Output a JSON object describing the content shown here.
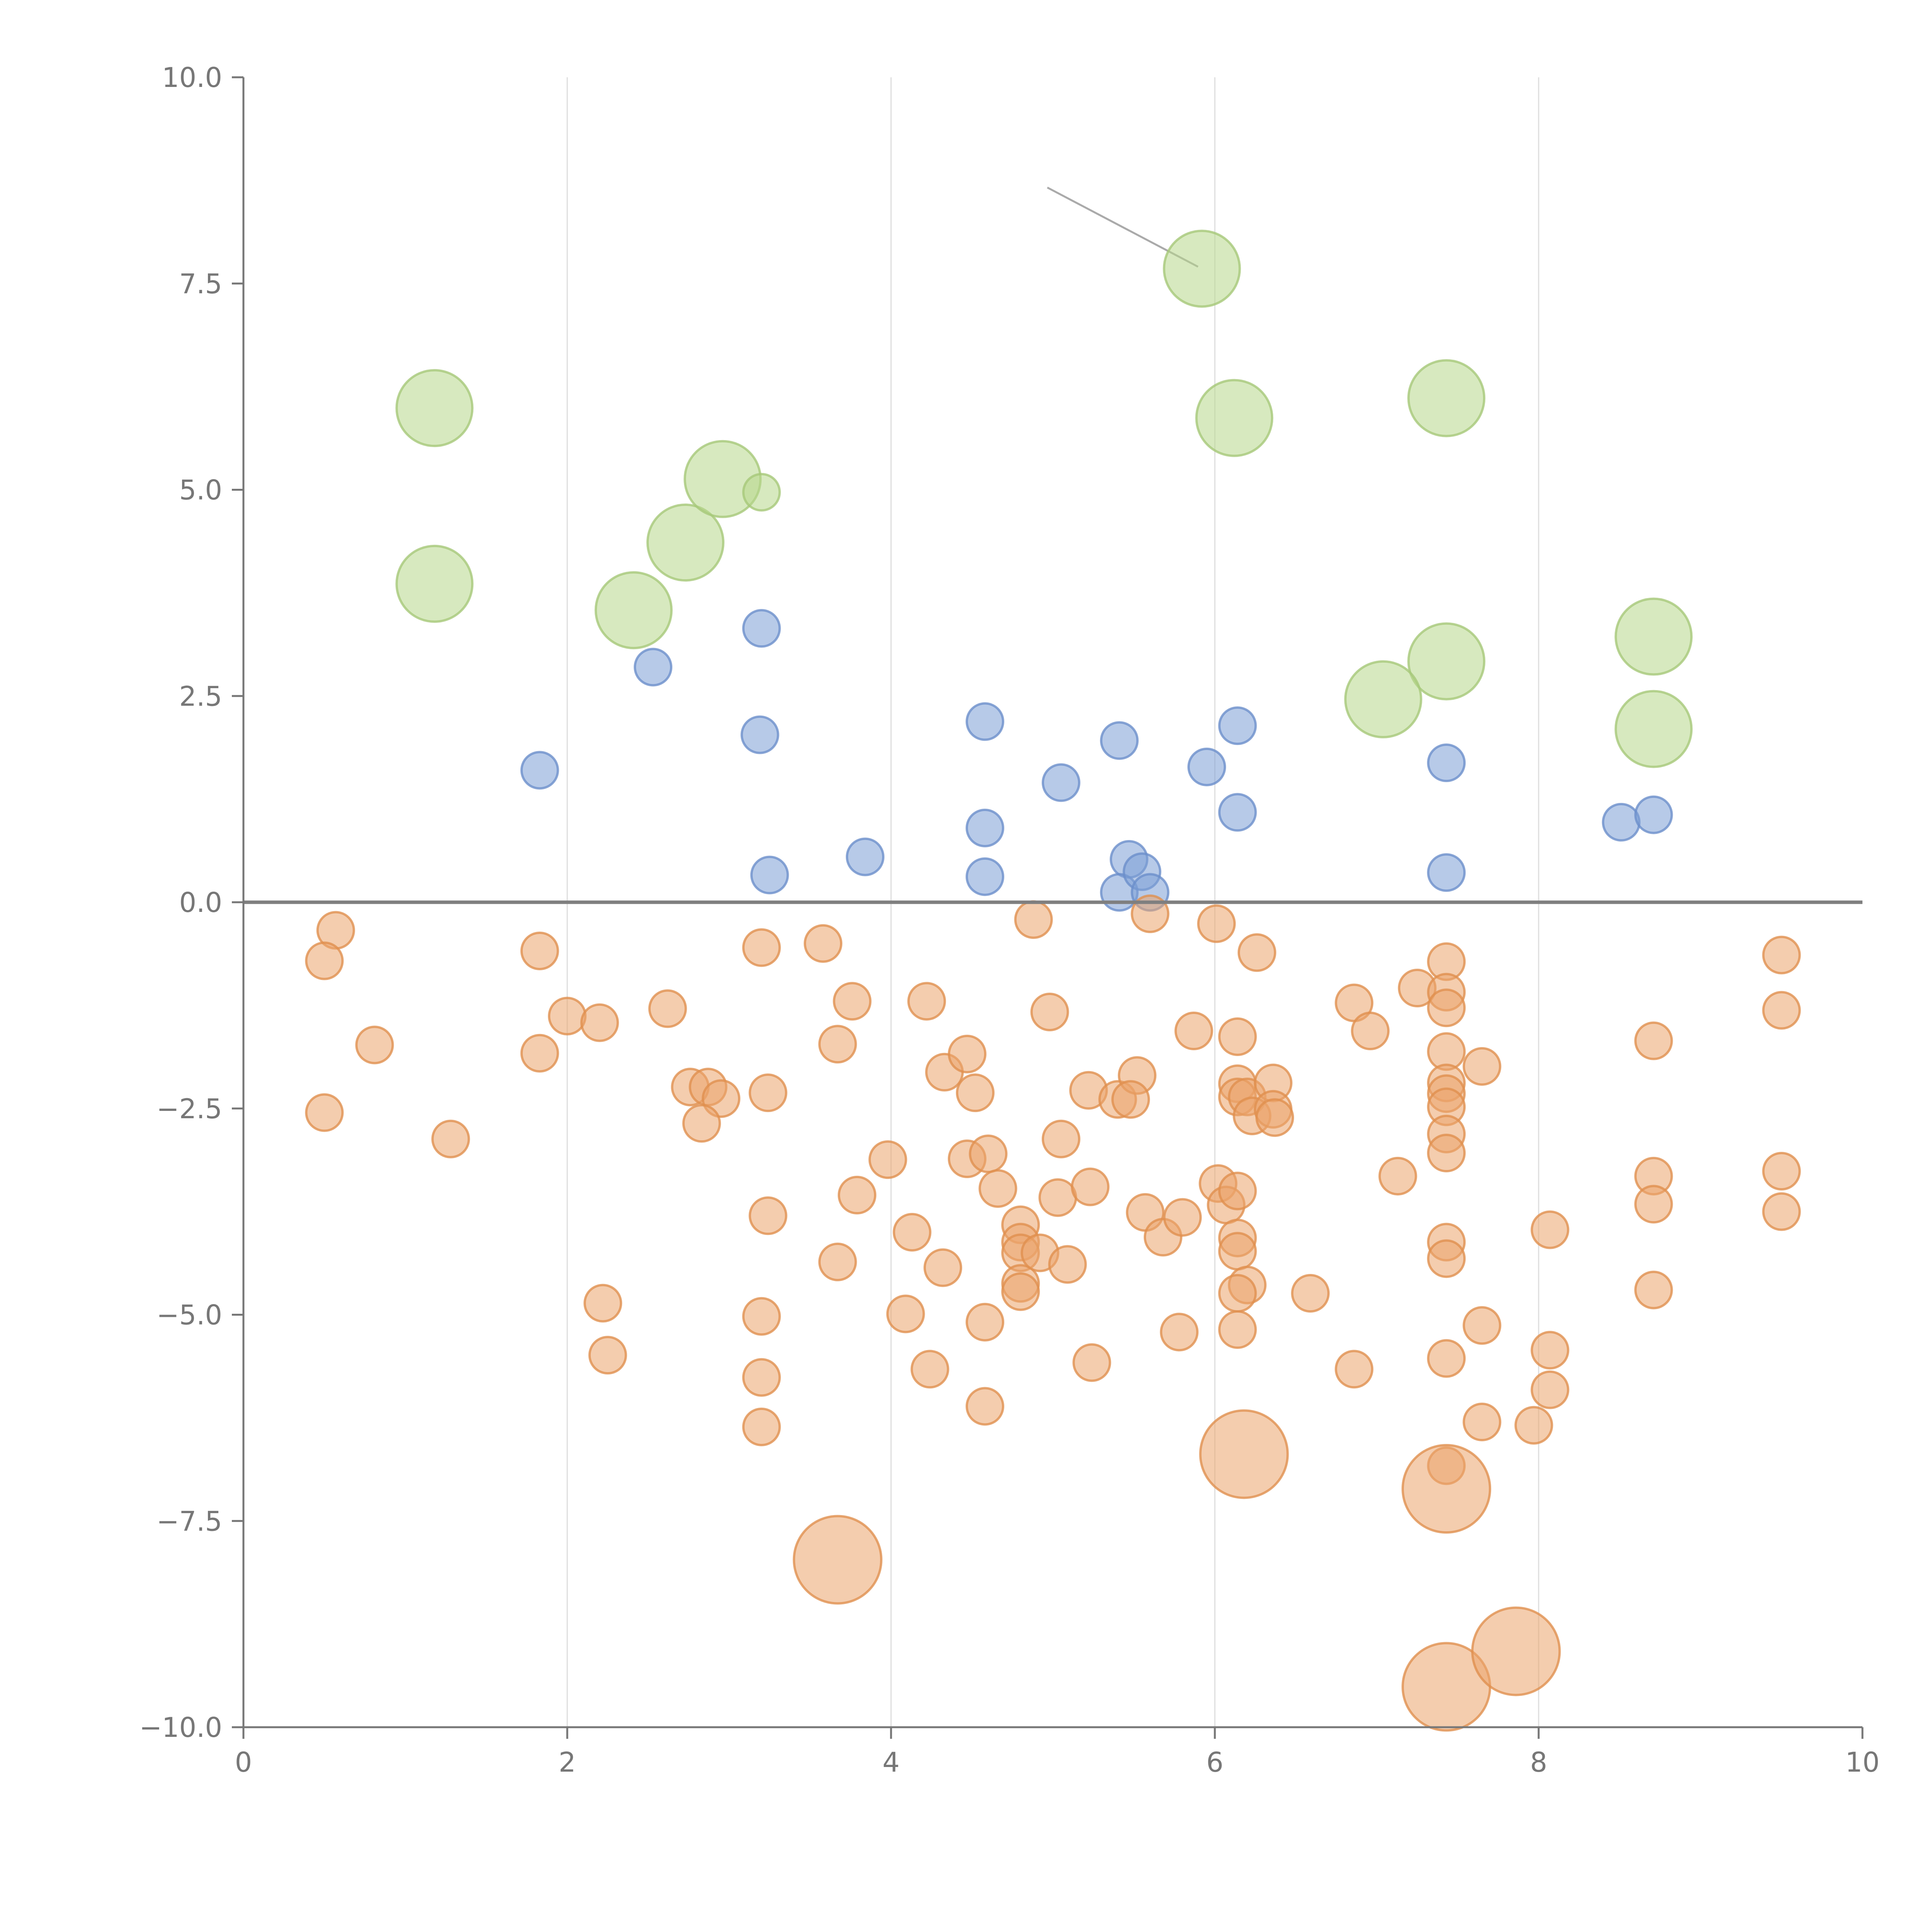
{
  "chart_data": {
    "type": "scatter",
    "title": "",
    "xlabel": "",
    "ylabel": "",
    "xlim": [
      0,
      10
    ],
    "ylim": [
      -10,
      10
    ],
    "x_ticks": [
      0,
      2,
      4,
      6,
      8,
      10
    ],
    "x_tick_labels": [
      "0",
      "2",
      "4",
      "6",
      "8",
      "10"
    ],
    "y_ticks": [
      10,
      7.5,
      5,
      2.5,
      0,
      -2.5,
      -5,
      -7.5,
      -10
    ],
    "y_tick_labels": [
      "10.0",
      "7.5",
      "5.0",
      "2.5",
      "0.0",
      "−2.5",
      "−5.0",
      "−7.5",
      "−10.0"
    ],
    "x_grid": true,
    "y_grid": false,
    "reference_line_y": 0,
    "colors": {
      "blue_fill": "#7c9fd6",
      "blue_stroke": "#6b8ecb",
      "green_fill": "#b7d78a",
      "green_stroke": "#a6c879",
      "orange_fill": "#eba46c",
      "orange_stroke": "#e0904f",
      "axis": "#777777",
      "grid": "#dddddd",
      "zero_line": "#7f7f7f"
    },
    "series": [
      {
        "name": "blue",
        "color_key": "blue",
        "size_unit": 1,
        "points": [
          [
            1.83,
            1.6
          ],
          [
            2.53,
            2.85
          ],
          [
            3.2,
            3.32
          ],
          [
            3.19,
            2.03
          ],
          [
            3.25,
            0.33
          ],
          [
            3.84,
            0.55
          ],
          [
            4.58,
            2.19
          ],
          [
            4.58,
            0.9
          ],
          [
            4.58,
            0.31
          ],
          [
            5.05,
            1.45
          ],
          [
            5.41,
            1.96
          ],
          [
            5.47,
            0.52
          ],
          [
            5.41,
            0.12
          ],
          [
            5.55,
            0.37
          ],
          [
            5.6,
            0.12
          ],
          [
            5.95,
            1.64
          ],
          [
            6.14,
            2.14
          ],
          [
            6.14,
            1.09
          ],
          [
            7.43,
            1.69
          ],
          [
            7.43,
            0.36
          ],
          [
            8.51,
            0.97
          ],
          [
            8.71,
            1.06
          ]
        ]
      },
      {
        "name": "green",
        "color_key": "green",
        "points": [
          [
            1.18,
            5.99,
            2
          ],
          [
            1.18,
            3.86,
            2
          ],
          [
            2.41,
            3.54,
            2
          ],
          [
            2.73,
            4.36,
            2
          ],
          [
            2.96,
            5.13,
            2
          ],
          [
            3.2,
            4.97,
            1
          ],
          [
            5.92,
            7.68,
            2
          ],
          [
            6.12,
            5.87,
            2
          ],
          [
            7.43,
            6.11,
            2
          ],
          [
            7.43,
            2.92,
            2
          ],
          [
            7.04,
            2.46,
            2
          ],
          [
            8.71,
            3.22,
            2
          ],
          [
            8.71,
            2.1,
            2
          ]
        ]
      },
      {
        "name": "orange",
        "color_key": "orange",
        "points": [
          [
            0.57,
            -0.34,
            1
          ],
          [
            0.5,
            -0.71,
            1
          ],
          [
            0.81,
            -1.73,
            1
          ],
          [
            0.5,
            -2.55,
            1
          ],
          [
            1.28,
            -2.87,
            1
          ],
          [
            1.83,
            -0.59,
            1
          ],
          [
            1.83,
            -1.83,
            1
          ],
          [
            2.0,
            -1.38,
            1
          ],
          [
            2.2,
            -1.46,
            1
          ],
          [
            2.62,
            -1.29,
            1
          ],
          [
            2.76,
            -2.24,
            1
          ],
          [
            2.87,
            -2.24,
            1
          ],
          [
            2.95,
            -2.38,
            1
          ],
          [
            2.83,
            -2.68,
            1
          ],
          [
            3.2,
            -0.55,
            1
          ],
          [
            3.24,
            -2.31,
            1
          ],
          [
            3.24,
            -3.8,
            1
          ],
          [
            2.22,
            -4.86,
            1
          ],
          [
            2.25,
            -5.49,
            1
          ],
          [
            3.2,
            -5.02,
            1
          ],
          [
            3.2,
            -5.76,
            1
          ],
          [
            3.2,
            -6.36,
            1
          ],
          [
            3.58,
            -0.5,
            1
          ],
          [
            3.76,
            -1.2,
            1
          ],
          [
            3.67,
            -1.72,
            1
          ],
          [
            3.79,
            -3.55,
            1
          ],
          [
            3.67,
            -4.36,
            1
          ],
          [
            3.98,
            -3.12,
            1
          ],
          [
            4.09,
            -4.99,
            1
          ],
          [
            4.13,
            -4.0,
            1
          ],
          [
            4.22,
            -1.2,
            1
          ],
          [
            4.24,
            -5.66,
            1
          ],
          [
            4.33,
            -2.06,
            1
          ],
          [
            4.32,
            -4.43,
            1
          ],
          [
            4.47,
            -1.84,
            1
          ],
          [
            4.52,
            -2.31,
            1
          ],
          [
            4.47,
            -3.11,
            1
          ],
          [
            4.6,
            -3.05,
            1
          ],
          [
            4.66,
            -3.47,
            1
          ],
          [
            4.58,
            -5.09,
            1
          ],
          [
            4.58,
            -6.11,
            1
          ],
          [
            4.8,
            -3.91,
            1
          ],
          [
            4.8,
            -4.12,
            1
          ],
          [
            4.8,
            -4.25,
            1
          ],
          [
            4.8,
            -4.62,
            1
          ],
          [
            4.8,
            -4.72,
            1
          ],
          [
            4.88,
            -0.21,
            1
          ],
          [
            4.92,
            -4.25,
            1
          ],
          [
            4.98,
            -1.33,
            1
          ],
          [
            5.05,
            -2.87,
            1
          ],
          [
            5.03,
            -3.58,
            1
          ],
          [
            5.09,
            -4.39,
            1
          ],
          [
            5.22,
            -2.28,
            1
          ],
          [
            5.23,
            -3.45,
            1
          ],
          [
            5.24,
            -5.58,
            1
          ],
          [
            5.4,
            -2.39,
            1
          ],
          [
            5.52,
            -2.1,
            1
          ],
          [
            5.48,
            -2.39,
            1
          ],
          [
            5.57,
            -3.76,
            1
          ],
          [
            5.68,
            -4.06,
            1
          ],
          [
            5.6,
            -0.14,
            1
          ],
          [
            5.78,
            -5.21,
            1
          ],
          [
            5.8,
            -3.82,
            1
          ],
          [
            5.87,
            -1.56,
            1
          ],
          [
            6.01,
            -0.26,
            1
          ],
          [
            6.02,
            -3.41,
            1
          ],
          [
            6.07,
            -3.67,
            1
          ],
          [
            6.14,
            -3.5,
            1
          ],
          [
            6.14,
            -1.63,
            1
          ],
          [
            6.14,
            -2.2,
            1
          ],
          [
            6.14,
            -2.36,
            1
          ],
          [
            6.2,
            -2.36,
            1
          ],
          [
            6.23,
            -2.59,
            1
          ],
          [
            6.26,
            -0.61,
            1
          ],
          [
            6.36,
            -2.19,
            1
          ],
          [
            6.36,
            -2.51,
            1
          ],
          [
            6.37,
            -2.61,
            1
          ],
          [
            6.14,
            -4.07,
            1
          ],
          [
            6.14,
            -4.23,
            1
          ],
          [
            6.2,
            -4.64,
            1
          ],
          [
            6.14,
            -4.74,
            1
          ],
          [
            6.14,
            -5.18,
            1
          ],
          [
            6.18,
            -6.69,
            3
          ],
          [
            6.59,
            -4.74,
            1
          ],
          [
            6.86,
            -1.22,
            1
          ],
          [
            6.96,
            -1.56,
            1
          ],
          [
            6.86,
            -5.66,
            1
          ],
          [
            7.13,
            -3.32,
            1
          ],
          [
            7.25,
            -1.04,
            1
          ],
          [
            7.43,
            -0.72,
            1
          ],
          [
            7.43,
            -1.09,
            1
          ],
          [
            7.43,
            -1.28,
            1
          ],
          [
            7.43,
            -1.81,
            1
          ],
          [
            7.43,
            -2.19,
            1
          ],
          [
            7.43,
            -2.32,
            1
          ],
          [
            7.43,
            -2.48,
            1
          ],
          [
            7.43,
            -2.81,
            1
          ],
          [
            7.43,
            -3.04,
            1
          ],
          [
            7.43,
            -4.12,
            1
          ],
          [
            7.43,
            -4.32,
            1
          ],
          [
            7.43,
            -5.53,
            1
          ],
          [
            7.43,
            -6.83,
            1
          ],
          [
            7.43,
            -7.11,
            3
          ],
          [
            7.43,
            -9.51,
            3
          ],
          [
            7.65,
            -1.99,
            1
          ],
          [
            7.65,
            -5.13,
            1
          ],
          [
            7.65,
            -6.3,
            1
          ],
          [
            7.86,
            -9.08,
            3
          ],
          [
            7.97,
            -6.34,
            1
          ],
          [
            8.07,
            -3.97,
            1
          ],
          [
            8.07,
            -5.43,
            1
          ],
          [
            8.07,
            -5.91,
            1
          ],
          [
            8.71,
            -1.68,
            1
          ],
          [
            8.71,
            -3.32,
            1
          ],
          [
            8.71,
            -3.66,
            1
          ],
          [
            8.71,
            -4.7,
            1
          ],
          [
            9.5,
            -0.64,
            1
          ],
          [
            9.5,
            -1.31,
            1
          ],
          [
            9.5,
            -3.26,
            1
          ],
          [
            9.5,
            -3.75,
            1
          ],
          [
            3.67,
            -7.97,
            3
          ]
        ]
      }
    ]
  }
}
